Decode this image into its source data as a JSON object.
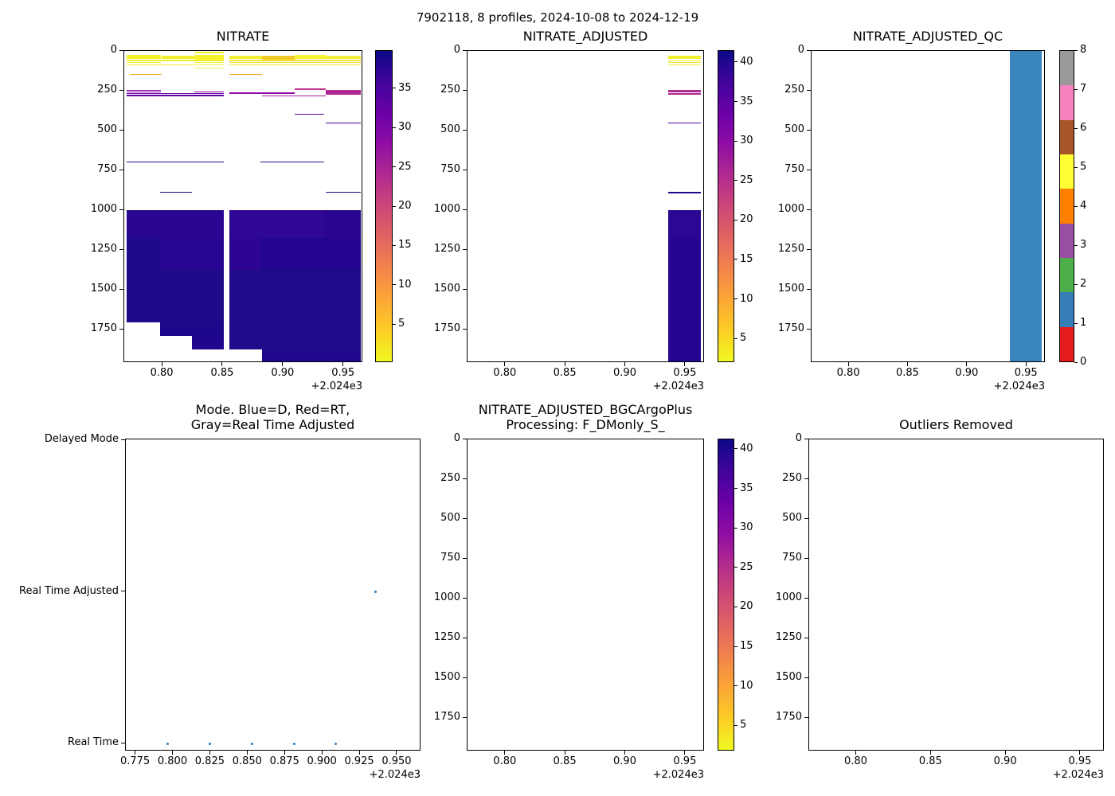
{
  "figure": {
    "title": "7902118, 8 profiles, 2024-10-08 to 2024-12-19",
    "background": "#ffffff",
    "x_offset_label": "+2.024e3"
  },
  "colormap": {
    "name": "plasma-reversed-vertical",
    "stops_top_to_bottom": [
      "#0d0887",
      "#41049d",
      "#6a00a8",
      "#8f0da4",
      "#b12a90",
      "#cc4778",
      "#e16462",
      "#f2844b",
      "#fca636",
      "#fcce25",
      "#f0f921"
    ]
  },
  "qc_colors_low_to_high": [
    "#e41a1c",
    "#377eb8",
    "#4daf4a",
    "#984ea3",
    "#ff7f00",
    "#ffff33",
    "#a65628",
    "#f781bf",
    "#999999"
  ],
  "chart_data": [
    {
      "type": "heatmap",
      "title_lines": [
        "NITRATE"
      ],
      "xlim": [
        0.7683,
        0.966
      ],
      "ylim_depth": [
        0,
        1960
      ],
      "x_ticks": [
        0.8,
        0.85,
        0.9,
        0.95
      ],
      "x_tick_labels": [
        "0.80",
        "0.85",
        "0.90",
        "0.95"
      ],
      "y_ticks": [
        0,
        250,
        500,
        750,
        1000,
        1250,
        1500,
        1750
      ],
      "y_tick_labels": [
        "0",
        "250",
        "500",
        "750",
        "1000",
        "1250",
        "1500",
        "1750"
      ],
      "colorbar": {
        "kind": "gradient",
        "vmin": 0.2,
        "vmax": 39.8,
        "ticks": [
          5,
          10,
          15,
          20,
          25,
          30,
          35
        ]
      },
      "bands": [
        {
          "d0": 4,
          "d1": 13,
          "t0": 0.826,
          "t1": 0.851,
          "c": "#f7ef28"
        },
        {
          "d0": 27,
          "d1": 50,
          "t0": 0.7705,
          "t1": 0.799,
          "c": "#f2f128"
        },
        {
          "d0": 31,
          "d1": 50,
          "t0": 0.799,
          "t1": 0.826,
          "c": "#f3ee2b"
        },
        {
          "d0": 26,
          "d1": 55,
          "t0": 0.826,
          "t1": 0.8507,
          "c": "#f5f02a"
        },
        {
          "d0": 29,
          "d1": 50,
          "t0": 0.8553,
          "t1": 0.882,
          "c": "#f1ee33"
        },
        {
          "d0": 30,
          "d1": 54,
          "t0": 0.882,
          "t1": 0.909,
          "c": "#f1ca27"
        },
        {
          "d0": 24,
          "d1": 50,
          "t0": 0.909,
          "t1": 0.935,
          "c": "#f9f232"
        },
        {
          "d0": 29,
          "d1": 50,
          "t0": 0.935,
          "t1": 0.964,
          "c": "#f3ee3a"
        },
        {
          "d0": 57,
          "d1": 63,
          "t0": 0.7705,
          "t1": 0.8507,
          "c": "#f4ef33"
        },
        {
          "d0": 57,
          "d1": 63,
          "t0": 0.8553,
          "t1": 0.964,
          "c": "#f2e134"
        },
        {
          "d0": 70,
          "d1": 77,
          "t0": 0.7705,
          "t1": 0.799,
          "c": "#f6f02e"
        },
        {
          "d0": 70,
          "d1": 77,
          "t0": 0.826,
          "t1": 0.8507,
          "c": "#f5ee38"
        },
        {
          "d0": 70,
          "d1": 77,
          "t0": 0.8553,
          "t1": 0.964,
          "c": "#f3da33"
        },
        {
          "d0": 85,
          "d1": 92,
          "t0": 0.7705,
          "t1": 0.8507,
          "c": "#f6ef40"
        },
        {
          "d0": 85,
          "d1": 92,
          "t0": 0.8553,
          "t1": 0.964,
          "c": "#f4e93c"
        },
        {
          "d0": 103,
          "d1": 110,
          "t0": 0.826,
          "t1": 0.8507,
          "c": "#f7f04e"
        },
        {
          "d0": 143,
          "d1": 151,
          "t0": 0.7727,
          "t1": 0.799,
          "c": "#f4ab1b"
        },
        {
          "d0": 143,
          "d1": 151,
          "t0": 0.8553,
          "t1": 0.882,
          "c": "#efa51f"
        },
        {
          "d0": 236,
          "d1": 243,
          "t0": 0.909,
          "t1": 0.935,
          "c": "#c23a8c"
        },
        {
          "d0": 244,
          "d1": 251,
          "t0": 0.7705,
          "t1": 0.799,
          "c": "#8a07a6"
        },
        {
          "d0": 254,
          "d1": 261,
          "t0": 0.7705,
          "t1": 0.799,
          "c": "#7d03a8"
        },
        {
          "d0": 254,
          "d1": 261,
          "t0": 0.826,
          "t1": 0.8507,
          "c": "#8306a7"
        },
        {
          "d0": 263,
          "d1": 270,
          "t0": 0.7705,
          "t1": 0.8507,
          "c": "#7104a6"
        },
        {
          "d0": 262,
          "d1": 268,
          "t0": 0.8553,
          "t1": 0.909,
          "c": "#8c0ca5"
        },
        {
          "d0": 247,
          "d1": 254,
          "t0": 0.935,
          "t1": 0.964,
          "c": "#b52e8b"
        },
        {
          "d0": 257,
          "d1": 263,
          "t0": 0.935,
          "t1": 0.964,
          "c": "#ab2596"
        },
        {
          "d0": 266,
          "d1": 273,
          "t0": 0.935,
          "t1": 0.964,
          "c": "#b02991"
        },
        {
          "d0": 276,
          "d1": 283,
          "t0": 0.7705,
          "t1": 0.8507,
          "c": "#5e01a6"
        },
        {
          "d0": 278,
          "d1": 285,
          "t0": 0.882,
          "t1": 0.935,
          "c": "#a21c9b"
        },
        {
          "d0": 393,
          "d1": 400,
          "t0": 0.909,
          "t1": 0.934,
          "c": "#5601a4"
        },
        {
          "d0": 448,
          "d1": 455,
          "t0": 0.935,
          "t1": 0.964,
          "c": "#4903a0"
        },
        {
          "d0": 695,
          "d1": 702,
          "t0": 0.7705,
          "t1": 0.8507,
          "c": "#2d0693"
        },
        {
          "d0": 695,
          "d1": 702,
          "t0": 0.881,
          "t1": 0.934,
          "c": "#2d0693"
        },
        {
          "d0": 883,
          "d1": 890,
          "t0": 0.798,
          "t1": 0.8245,
          "c": "#23058f"
        },
        {
          "d0": 883,
          "d1": 890,
          "t0": 0.935,
          "t1": 0.964,
          "c": "#23058f"
        },
        {
          "d0": 1000,
          "d1": 1175,
          "t0": 0.7705,
          "t1": 0.8507,
          "c": "#2b0791"
        },
        {
          "d0": 1175,
          "d1": 1375,
          "t0": 0.7705,
          "t1": 0.8507,
          "c": "#270691"
        },
        {
          "d0": 1175,
          "d1": 1375,
          "t0": 0.7705,
          "t1": 0.798,
          "c": "#1f0a8c"
        },
        {
          "d0": 1375,
          "d1": 1705,
          "t0": 0.7705,
          "t1": 0.8507,
          "c": "#1c0a88"
        },
        {
          "d0": 1705,
          "d1": 1790,
          "t0": 0.798,
          "t1": 0.8507,
          "c": "#1e078a"
        },
        {
          "d0": 1790,
          "d1": 1875,
          "t0": 0.8245,
          "t1": 0.8507,
          "c": "#20068c"
        },
        {
          "d0": 1000,
          "d1": 1175,
          "t0": 0.8553,
          "t1": 0.964,
          "c": "#2e0794"
        },
        {
          "d0": 1000,
          "d1": 1175,
          "t0": 0.935,
          "t1": 0.964,
          "c": "#290590"
        },
        {
          "d0": 1175,
          "d1": 1375,
          "t0": 0.8553,
          "t1": 0.964,
          "c": "#2c0692"
        },
        {
          "d0": 1175,
          "d1": 1375,
          "t0": 0.881,
          "t1": 0.964,
          "c": "#230590"
        },
        {
          "d0": 1375,
          "d1": 1875,
          "t0": 0.8553,
          "t1": 0.964,
          "c": "#200c8b"
        },
        {
          "d0": 1875,
          "d1": 1948,
          "t0": 0.882,
          "t1": 0.964,
          "c": "#23078e"
        }
      ]
    },
    {
      "type": "heatmap",
      "title_lines": [
        "NITRATE_ADJUSTED"
      ],
      "xlim": [
        0.7683,
        0.966
      ],
      "ylim_depth": [
        0,
        1960
      ],
      "x_ticks": [
        0.8,
        0.85,
        0.9,
        0.95
      ],
      "x_tick_labels": [
        "0.80",
        "0.85",
        "0.90",
        "0.95"
      ],
      "y_ticks": [
        0,
        250,
        500,
        750,
        1000,
        1250,
        1500,
        1750
      ],
      "y_tick_labels": [
        "0",
        "250",
        "500",
        "750",
        "1000",
        "1250",
        "1500",
        "1750"
      ],
      "colorbar": {
        "kind": "gradient",
        "vmin": 2.0,
        "vmax": 41.5,
        "ticks": [
          5,
          10,
          15,
          20,
          25,
          30,
          35,
          40
        ]
      },
      "bands": [
        {
          "d0": 28,
          "d1": 52,
          "t0": 0.9355,
          "t1": 0.9625,
          "c": "#f1ef2d"
        },
        {
          "d0": 58,
          "d1": 64,
          "t0": 0.9355,
          "t1": 0.9625,
          "c": "#f3e832"
        },
        {
          "d0": 70,
          "d1": 77,
          "t0": 0.9355,
          "t1": 0.9625,
          "c": "#f2e03a"
        },
        {
          "d0": 84,
          "d1": 91,
          "t0": 0.9355,
          "t1": 0.9625,
          "c": "#f4ee3e"
        },
        {
          "d0": 246,
          "d1": 253,
          "t0": 0.9355,
          "t1": 0.9625,
          "c": "#b52e8b"
        },
        {
          "d0": 256,
          "d1": 262,
          "t0": 0.9355,
          "t1": 0.9625,
          "c": "#a82397"
        },
        {
          "d0": 266,
          "d1": 273,
          "t0": 0.9355,
          "t1": 0.9625,
          "c": "#b02991"
        },
        {
          "d0": 450,
          "d1": 457,
          "t0": 0.9355,
          "t1": 0.9625,
          "c": "#5601a4"
        },
        {
          "d0": 886,
          "d1": 893,
          "t0": 0.9355,
          "t1": 0.9625,
          "c": "#23058f"
        },
        {
          "d0": 1000,
          "d1": 1175,
          "t0": 0.9355,
          "t1": 0.9625,
          "c": "#2b0794"
        },
        {
          "d0": 1175,
          "d1": 1950,
          "t0": 0.9355,
          "t1": 0.9625,
          "c": "#250691"
        }
      ]
    },
    {
      "type": "heatmap",
      "title_lines": [
        "NITRATE_ADJUSTED_QC"
      ],
      "xlim": [
        0.7683,
        0.966
      ],
      "ylim_depth": [
        0,
        1960
      ],
      "x_ticks": [
        0.8,
        0.85,
        0.9,
        0.95
      ],
      "x_tick_labels": [
        "0.80",
        "0.85",
        "0.90",
        "0.95"
      ],
      "y_ticks": [
        0,
        250,
        500,
        750,
        1000,
        1250,
        1500,
        1750
      ],
      "y_tick_labels": [
        "0",
        "250",
        "500",
        "750",
        "1000",
        "1250",
        "1500",
        "1750"
      ],
      "colorbar": {
        "kind": "discrete",
        "ticks": [
          0,
          1,
          2,
          3,
          4,
          5,
          6,
          7,
          8
        ]
      },
      "bands": [
        {
          "d0": 0,
          "d1": 1950,
          "t0": 0.9357,
          "t1": 0.9625,
          "c": "#3b86bf"
        }
      ]
    },
    {
      "type": "scatter_categorical",
      "title_lines": [
        "Mode. Blue=D, Red=RT,",
        "Gray=Real Time Adjusted"
      ],
      "xlim": [
        0.7683,
        0.966
      ],
      "x_ticks": [
        0.775,
        0.8,
        0.825,
        0.85,
        0.875,
        0.9,
        0.925,
        0.95
      ],
      "x_tick_labels": [
        "0.775",
        "0.800",
        "0.825",
        "0.850",
        "0.875",
        "0.900",
        "0.925",
        "0.950"
      ],
      "rows": [
        "Delayed Mode",
        "Real Time Adjusted",
        "Real Time"
      ],
      "point_color": "#2d79b8",
      "points": [
        {
          "t": 0.7965,
          "row": "Real Time"
        },
        {
          "t": 0.8245,
          "row": "Real Time"
        },
        {
          "t": 0.853,
          "row": "Real Time"
        },
        {
          "t": 0.881,
          "row": "Real Time"
        },
        {
          "t": 0.9085,
          "row": "Real Time"
        },
        {
          "t": 0.9355,
          "row": "Real Time Adjusted"
        },
        {
          "t": 0.9655,
          "row": "Real Time Adjusted"
        }
      ]
    },
    {
      "type": "heatmap",
      "title_lines": [
        "NITRATE_ADJUSTED_BGCArgoPlus",
        "Processing: F_DMonly_S_"
      ],
      "xlim": [
        0.7683,
        0.966
      ],
      "ylim_depth": [
        0,
        1960
      ],
      "x_ticks": [
        0.8,
        0.85,
        0.9,
        0.95
      ],
      "x_tick_labels": [
        "0.80",
        "0.85",
        "0.90",
        "0.95"
      ],
      "y_ticks": [
        0,
        250,
        500,
        750,
        1000,
        1250,
        1500,
        1750
      ],
      "y_tick_labels": [
        "0",
        "250",
        "500",
        "750",
        "1000",
        "1250",
        "1500",
        "1750"
      ],
      "colorbar": {
        "kind": "gradient",
        "vmin": 1.8,
        "vmax": 41.3,
        "ticks": [
          5,
          10,
          15,
          20,
          25,
          30,
          35,
          40
        ]
      },
      "bands": []
    },
    {
      "type": "heatmap",
      "title_lines": [
        "Outliers Removed"
      ],
      "xlim": [
        0.7683,
        0.966
      ],
      "ylim_depth": [
        0,
        1960
      ],
      "x_ticks": [
        0.8,
        0.85,
        0.9,
        0.95
      ],
      "x_tick_labels": [
        "0.80",
        "0.85",
        "0.90",
        "0.95"
      ],
      "y_ticks": [
        0,
        250,
        500,
        750,
        1000,
        1250,
        1500,
        1750
      ],
      "y_tick_labels": [
        "0",
        "250",
        "500",
        "750",
        "1000",
        "1250",
        "1500",
        "1750"
      ],
      "bands": []
    }
  ]
}
